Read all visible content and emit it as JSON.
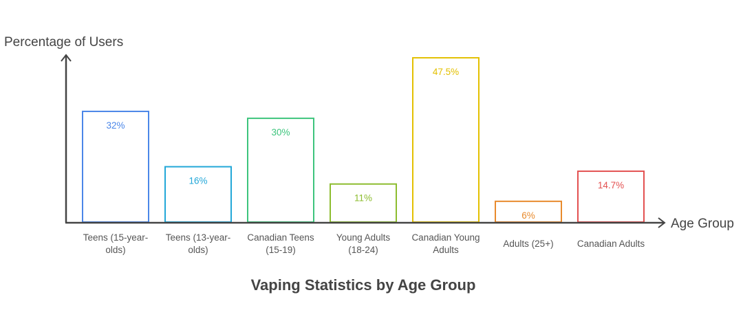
{
  "chart_data": {
    "type": "bar",
    "title": "Vaping Statistics by Age Group",
    "xlabel": "Age Group",
    "ylabel": "Percentage of Users",
    "ylim": [
      0,
      48
    ],
    "grid": false,
    "categories": [
      [
        "Teens (15-year-",
        "olds)"
      ],
      [
        "Teens (13-year-",
        "olds)"
      ],
      [
        "Canadian Teens",
        "(15-19)"
      ],
      [
        "Young Adults",
        "(18-24)"
      ],
      [
        "Canadian Young",
        "Adults"
      ],
      [
        "Adults (25+)"
      ],
      [
        "Canadian Adults"
      ]
    ],
    "values": [
      32,
      16,
      30,
      11,
      47.5,
      6,
      14.7
    ],
    "value_labels": [
      "32%",
      "16%",
      "30%",
      "11%",
      "47.5%",
      "6%",
      "14.7%"
    ],
    "colors": [
      "#4a86e8",
      "#22a7d8",
      "#3cc47c",
      "#8cbc2e",
      "#e3c000",
      "#e88a2c",
      "#e35050"
    ]
  }
}
